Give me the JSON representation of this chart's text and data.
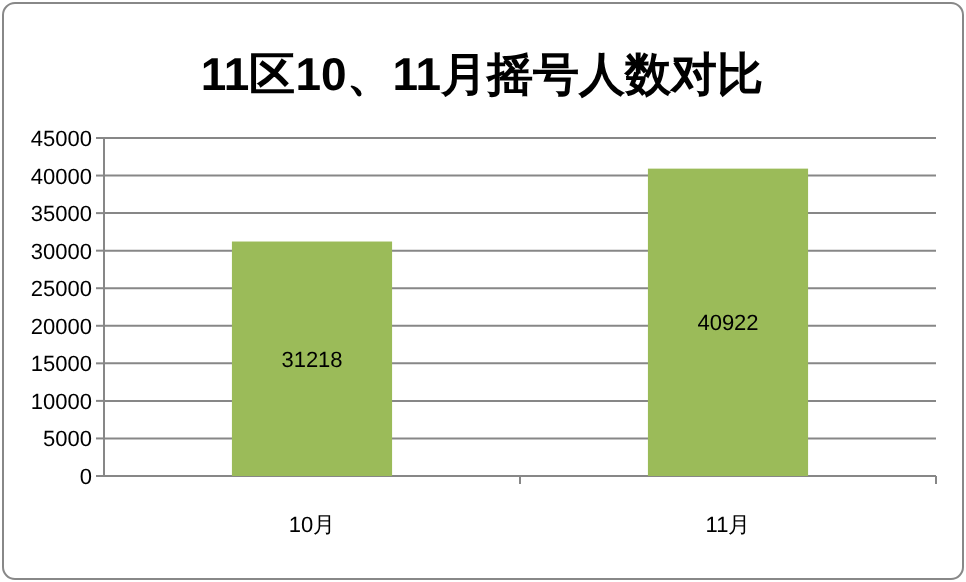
{
  "chart_data": {
    "type": "bar",
    "title": "11区10、11月摇号人数对比",
    "categories": [
      "10月",
      "11月"
    ],
    "values": [
      31218,
      40922
    ],
    "color": "#9bbb59",
    "ylim": [
      0,
      45000
    ],
    "yticks": [
      0,
      5000,
      10000,
      15000,
      20000,
      25000,
      30000,
      35000,
      40000,
      45000
    ],
    "grid": "y",
    "data_labels": true
  }
}
